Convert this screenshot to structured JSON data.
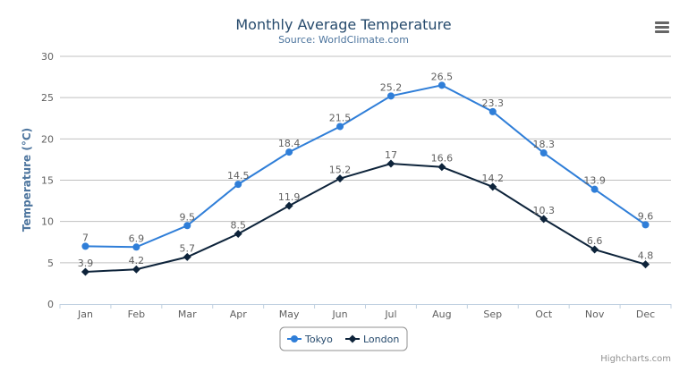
{
  "chart_data": {
    "type": "line",
    "title": "Monthly Average Temperature",
    "subtitle": "Source: WorldClimate.com",
    "ylabel": "Temperature (°C)",
    "xlabel": "",
    "categories": [
      "Jan",
      "Feb",
      "Mar",
      "Apr",
      "May",
      "Jun",
      "Jul",
      "Aug",
      "Sep",
      "Oct",
      "Nov",
      "Dec"
    ],
    "ylim": [
      0,
      30
    ],
    "yticks": [
      0,
      5,
      10,
      15,
      20,
      25,
      30
    ],
    "grid": true,
    "legend_position": "bottom-center",
    "series": [
      {
        "name": "Tokyo",
        "color": "#2f7ed8",
        "marker": "circle",
        "values": [
          7.0,
          6.9,
          9.5,
          14.5,
          18.4,
          21.5,
          25.2,
          26.5,
          23.3,
          18.3,
          13.9,
          9.6
        ]
      },
      {
        "name": "London",
        "color": "#0d233a",
        "marker": "diamond",
        "values": [
          3.9,
          4.2,
          5.7,
          8.5,
          11.9,
          15.2,
          17.0,
          16.6,
          14.2,
          10.3,
          6.6,
          4.8
        ]
      }
    ]
  },
  "credits": "Highcharts.com",
  "menu_icon": "hamburger-menu-icon"
}
